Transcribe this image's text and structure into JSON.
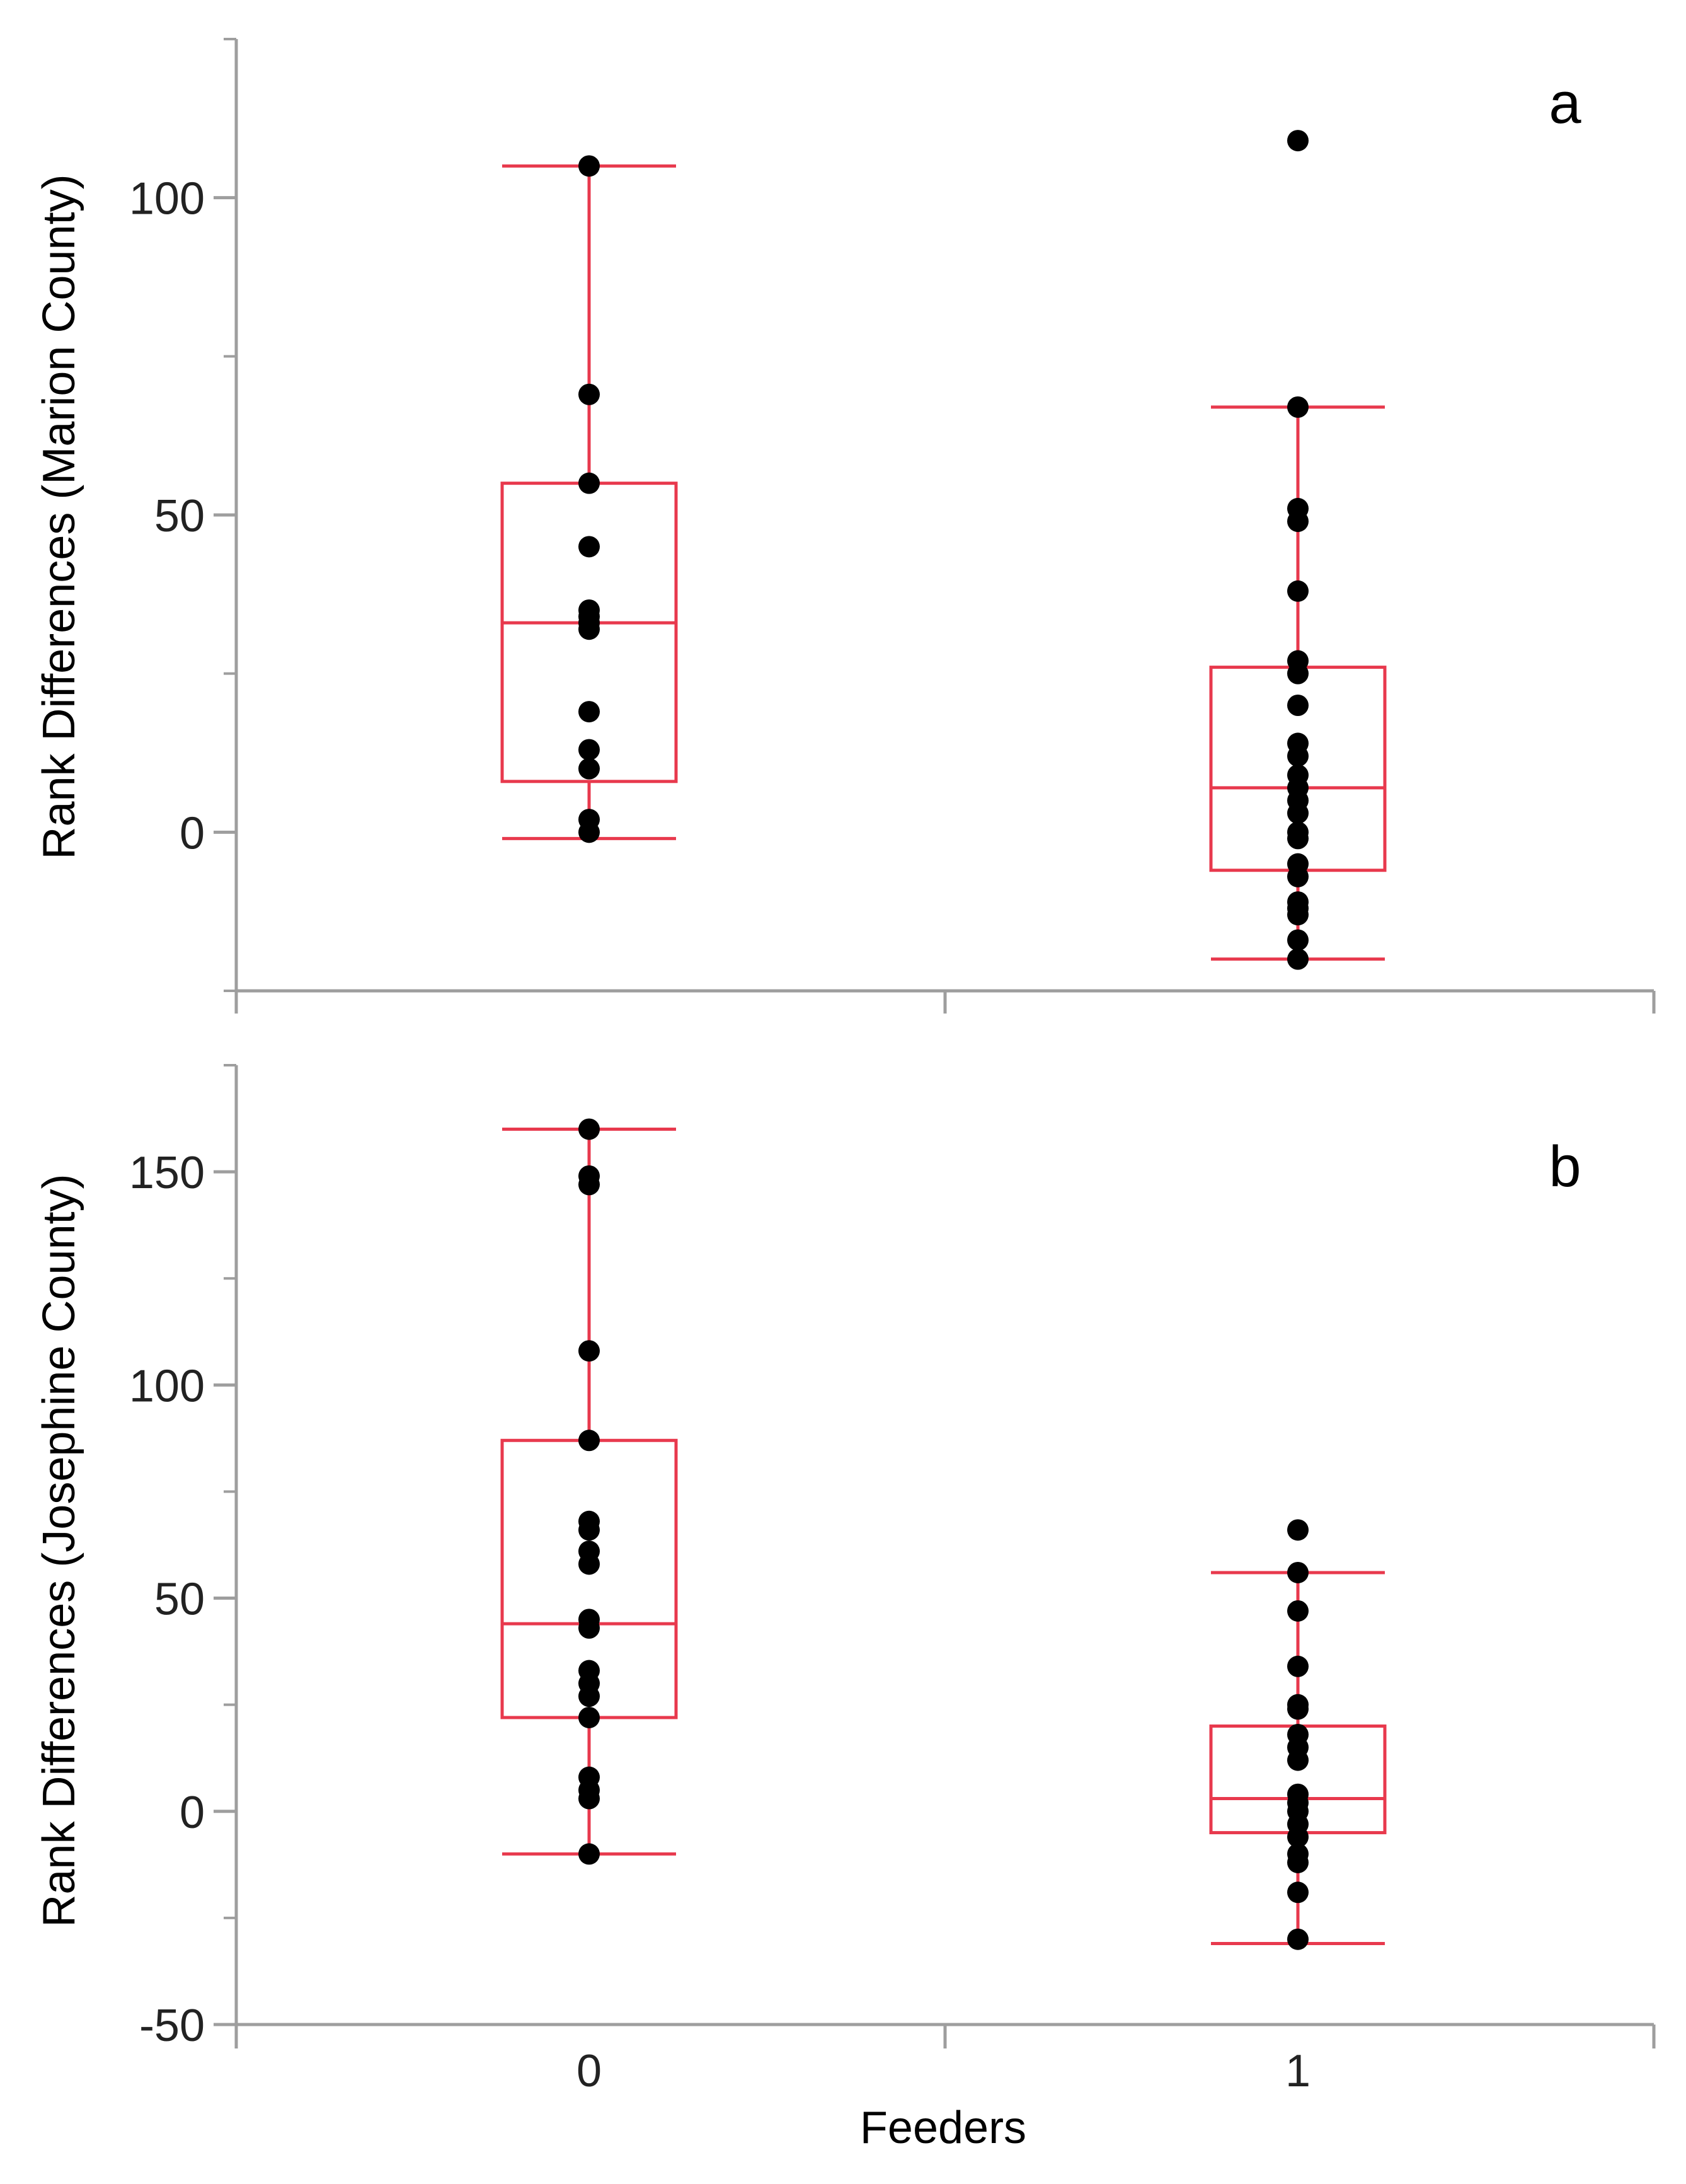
{
  "colors": {
    "box": "#e8394d",
    "point": "#000000",
    "axis": "#9e9e9e",
    "text": "#222222",
    "background": "#ffffff"
  },
  "figure": {
    "xlabel": "Feeders"
  },
  "chart_data": [
    {
      "type": "box",
      "panel_label": "a",
      "ylabel": "Rank Differences (Marion County)",
      "xlabel": "Feeders",
      "categories": [
        "0",
        "1"
      ],
      "show_x_tick_labels": false,
      "ylim": [
        -25,
        125
      ],
      "yticks": [
        0,
        50,
        100
      ],
      "yticks_minor": [
        -25,
        25,
        75,
        125
      ],
      "boxes": [
        {
          "category": "0",
          "whisker_low": -1,
          "q1": 8,
          "median": 33,
          "q3": 55,
          "whisker_high": 105
        },
        {
          "category": "1",
          "whisker_low": -20,
          "q1": -6,
          "median": 7,
          "q3": 26,
          "whisker_high": 67
        }
      ],
      "points": [
        {
          "category": "0",
          "values": [
            105,
            69,
            55,
            45,
            35,
            34,
            33,
            32,
            19,
            13,
            10,
            2,
            0
          ]
        },
        {
          "category": "1",
          "values": [
            109,
            67,
            51,
            49,
            38,
            27,
            25,
            20,
            14,
            12,
            9,
            7,
            5,
            3,
            0,
            -1,
            -5,
            -7,
            -11,
            -12,
            -13,
            -17,
            -20
          ]
        }
      ]
    },
    {
      "type": "box",
      "panel_label": "b",
      "ylabel": "Rank Differences (Josephine County)",
      "xlabel": "Feeders",
      "categories": [
        "0",
        "1"
      ],
      "show_x_tick_labels": true,
      "ylim": [
        -50,
        175
      ],
      "yticks": [
        -50,
        0,
        50,
        100,
        150
      ],
      "yticks_minor": [
        -25,
        25,
        75,
        125,
        175
      ],
      "boxes": [
        {
          "category": "0",
          "whisker_low": -10,
          "q1": 22,
          "median": 44,
          "q3": 87,
          "whisker_high": 160
        },
        {
          "category": "1",
          "whisker_low": -31,
          "q1": -5,
          "median": 3,
          "q3": 20,
          "whisker_high": 56
        }
      ],
      "points": [
        {
          "category": "0",
          "values": [
            160,
            149,
            147,
            108,
            87,
            68,
            66,
            61,
            58,
            45,
            43,
            33,
            30,
            27,
            22,
            8,
            5,
            3,
            -10
          ]
        },
        {
          "category": "1",
          "values": [
            66,
            56,
            47,
            34,
            25,
            24,
            18,
            15,
            12,
            4,
            2,
            0,
            -3,
            -6,
            -10,
            -12,
            -19,
            -30
          ]
        }
      ]
    }
  ]
}
